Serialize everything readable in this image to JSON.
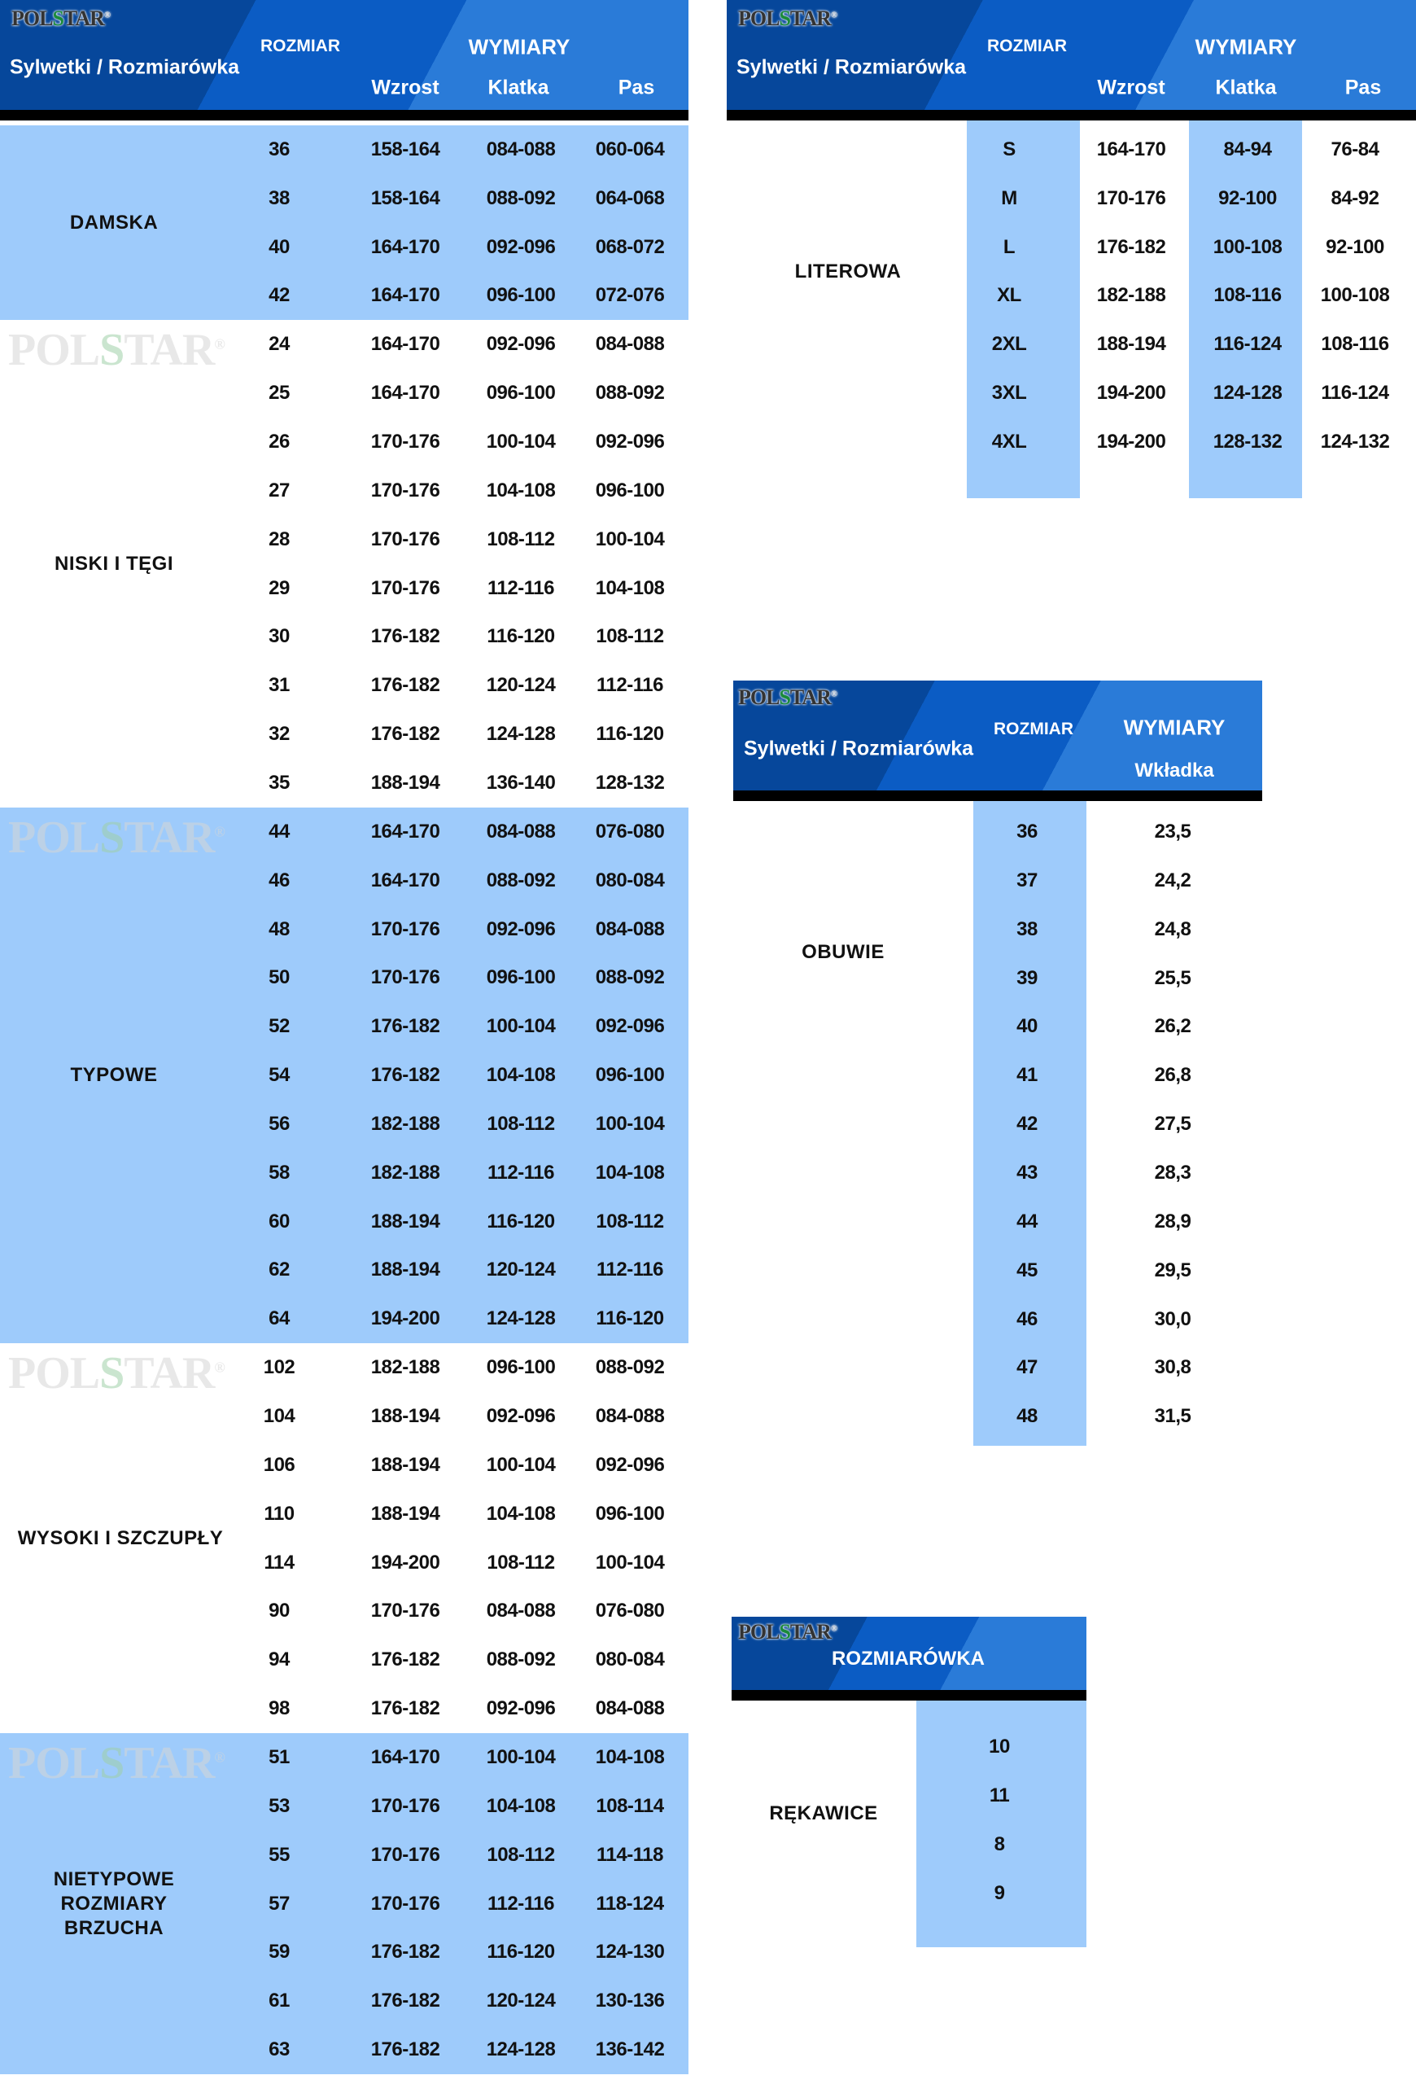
{
  "brand": "POLSTAR",
  "colors": {
    "header_dark": "#06479b",
    "header_mid": "#0b5cc4",
    "header_light": "#2a7bd8",
    "row_band": "#9ecbfb",
    "bar": "#000000"
  },
  "clothing": {
    "header": {
      "title": "Sylwetki / Rozmiarówka",
      "size": "ROZMIAR",
      "dims": "WYMIARY",
      "cols": [
        "Wzrost",
        "Klatka",
        "Pas"
      ]
    },
    "groups": [
      {
        "name": "DAMSKA",
        "rows": [
          [
            "36",
            "158-164",
            "084-088",
            "060-064"
          ],
          [
            "38",
            "158-164",
            "088-092",
            "064-068"
          ],
          [
            "40",
            "164-170",
            "092-096",
            "068-072"
          ],
          [
            "42",
            "164-170",
            "096-100",
            "072-076"
          ]
        ]
      },
      {
        "name": "NISKI I TĘGI",
        "rows": [
          [
            "24",
            "164-170",
            "092-096",
            "084-088"
          ],
          [
            "25",
            "164-170",
            "096-100",
            "088-092"
          ],
          [
            "26",
            "170-176",
            "100-104",
            "092-096"
          ],
          [
            "27",
            "170-176",
            "104-108",
            "096-100"
          ],
          [
            "28",
            "170-176",
            "108-112",
            "100-104"
          ],
          [
            "29",
            "170-176",
            "112-116",
            "104-108"
          ],
          [
            "30",
            "176-182",
            "116-120",
            "108-112"
          ],
          [
            "31",
            "176-182",
            "120-124",
            "112-116"
          ],
          [
            "32",
            "176-182",
            "124-128",
            "116-120"
          ],
          [
            "35",
            "188-194",
            "136-140",
            "128-132"
          ]
        ]
      },
      {
        "name": "TYPOWE",
        "rows": [
          [
            "44",
            "164-170",
            "084-088",
            "076-080"
          ],
          [
            "46",
            "164-170",
            "088-092",
            "080-084"
          ],
          [
            "48",
            "170-176",
            "092-096",
            "084-088"
          ],
          [
            "50",
            "170-176",
            "096-100",
            "088-092"
          ],
          [
            "52",
            "176-182",
            "100-104",
            "092-096"
          ],
          [
            "54",
            "176-182",
            "104-108",
            "096-100"
          ],
          [
            "56",
            "182-188",
            "108-112",
            "100-104"
          ],
          [
            "58",
            "182-188",
            "112-116",
            "104-108"
          ],
          [
            "60",
            "188-194",
            "116-120",
            "108-112"
          ],
          [
            "62",
            "188-194",
            "120-124",
            "112-116"
          ],
          [
            "64",
            "194-200",
            "124-128",
            "116-120"
          ]
        ]
      },
      {
        "name": "WYSOKI I SZCZUPŁY",
        "rows": [
          [
            "102",
            "182-188",
            "096-100",
            "088-092"
          ],
          [
            "104",
            "188-194",
            "092-096",
            "084-088"
          ],
          [
            "106",
            "188-194",
            "100-104",
            "092-096"
          ],
          [
            "110",
            "188-194",
            "104-108",
            "096-100"
          ],
          [
            "114",
            "194-200",
            "108-112",
            "100-104"
          ],
          [
            "90",
            "170-176",
            "084-088",
            "076-080"
          ],
          [
            "94",
            "176-182",
            "088-092",
            "080-084"
          ],
          [
            "98",
            "176-182",
            "092-096",
            "084-088"
          ]
        ]
      },
      {
        "name": "NIETYPOWE\nROZMIARY\nBRZUCHA",
        "rows": [
          [
            "51",
            "164-170",
            "100-104",
            "104-108"
          ],
          [
            "53",
            "170-176",
            "104-108",
            "108-114"
          ],
          [
            "55",
            "170-176",
            "108-112",
            "114-118"
          ],
          [
            "57",
            "170-176",
            "112-116",
            "118-124"
          ],
          [
            "59",
            "176-182",
            "116-120",
            "124-130"
          ],
          [
            "61",
            "176-182",
            "120-124",
            "130-136"
          ],
          [
            "63",
            "176-182",
            "124-128",
            "136-142"
          ]
        ]
      }
    ]
  },
  "letter": {
    "header": {
      "title": "Sylwetki / Rozmiarówka",
      "size": "ROZMIAR",
      "dims": "WYMIARY",
      "cols": [
        "Wzrost",
        "Klatka",
        "Pas"
      ]
    },
    "name": "LITEROWA",
    "rows": [
      [
        "S",
        "164-170",
        "84-94",
        "76-84"
      ],
      [
        "M",
        "170-176",
        "92-100",
        "84-92"
      ],
      [
        "L",
        "176-182",
        "100-108",
        "92-100"
      ],
      [
        "XL",
        "182-188",
        "108-116",
        "100-108"
      ],
      [
        "2XL",
        "188-194",
        "116-124",
        "108-116"
      ],
      [
        "3XL",
        "194-200",
        "124-128",
        "116-124"
      ],
      [
        "4XL",
        "194-200",
        "128-132",
        "124-132"
      ]
    ]
  },
  "shoes": {
    "header": {
      "title": "Sylwetki / Rozmiarówka",
      "size": "ROZMIAR",
      "dims": "WYMIARY",
      "col": "Wkładka"
    },
    "name": "OBUWIE",
    "rows": [
      [
        "36",
        "23,5"
      ],
      [
        "37",
        "24,2"
      ],
      [
        "38",
        "24,8"
      ],
      [
        "39",
        "25,5"
      ],
      [
        "40",
        "26,2"
      ],
      [
        "41",
        "26,8"
      ],
      [
        "42",
        "27,5"
      ],
      [
        "43",
        "28,3"
      ],
      [
        "44",
        "28,9"
      ],
      [
        "45",
        "29,5"
      ],
      [
        "46",
        "30,0"
      ],
      [
        "47",
        "30,8"
      ],
      [
        "48",
        "31,5"
      ]
    ]
  },
  "gloves": {
    "header": {
      "title": "ROZMIARÓWKA"
    },
    "name": "RĘKAWICE",
    "rows": [
      "10",
      "11",
      "8",
      "9"
    ]
  }
}
